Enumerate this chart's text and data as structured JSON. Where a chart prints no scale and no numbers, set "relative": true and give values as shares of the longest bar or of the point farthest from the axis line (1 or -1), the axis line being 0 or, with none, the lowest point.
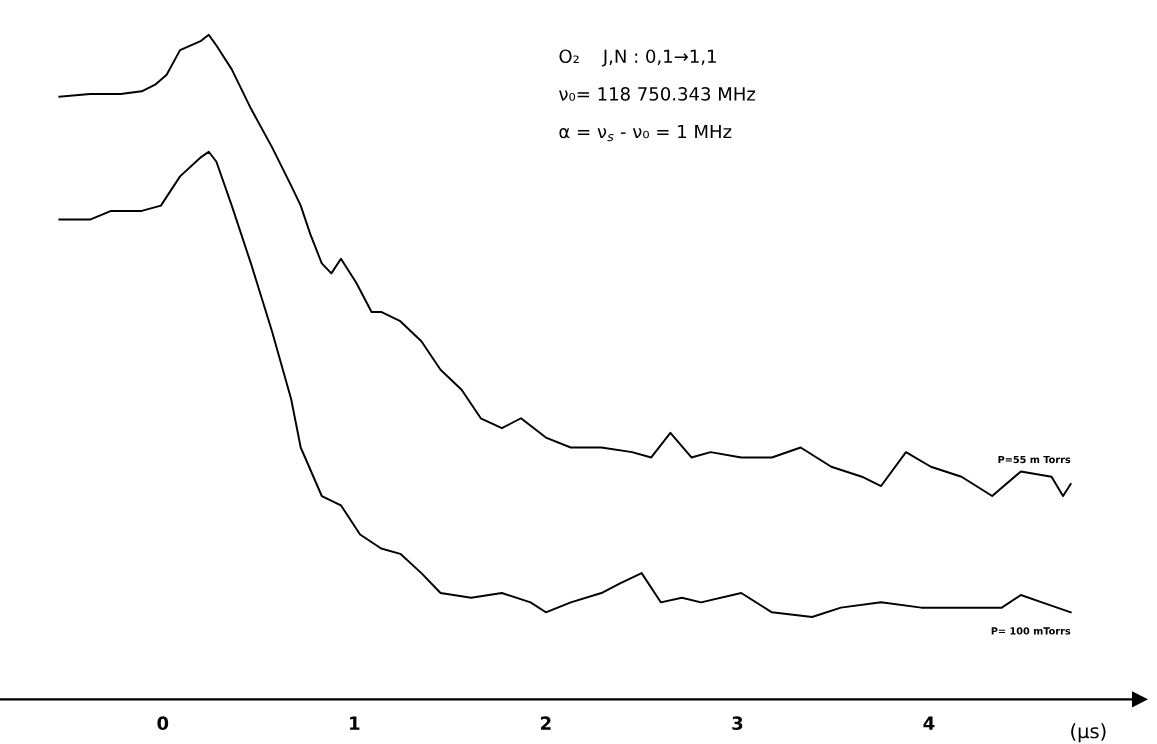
{
  "chart_data": {
    "type": "line",
    "relative": true,
    "xlabel": "(μs)",
    "xlim": [
      -0.85,
      5.1
    ],
    "xticks": [
      0,
      1,
      2,
      3,
      4
    ],
    "annotations": [
      "O₂    J,N : 0,1→1,1",
      "ν₀= 118 750.343 MHz",
      "α = ν$_{s}$ - ν₀ = 1 MHz"
    ],
    "series": [
      {
        "name": "P=55 m Torrs",
        "color": "#000000",
        "x": [
          -0.54,
          -0.38,
          -0.22,
          -0.11,
          -0.04,
          0.02,
          0.09,
          0.2,
          0.24,
          0.28,
          0.36,
          0.46,
          0.57,
          0.67,
          0.72,
          0.77,
          0.83,
          0.88,
          0.93,
          1.01,
          1.09,
          1.14,
          1.24,
          1.35,
          1.45,
          1.56,
          1.66,
          1.77,
          1.87,
          2.0,
          2.13,
          2.29,
          2.45,
          2.55,
          2.65,
          2.76,
          2.86,
          3.02,
          3.18,
          3.33,
          3.49,
          3.65,
          3.75,
          3.88,
          4.01,
          4.17,
          4.33,
          4.48,
          4.64,
          4.7,
          4.74
        ],
        "values": [
          0.907,
          0.911,
          0.911,
          0.915,
          0.925,
          0.94,
          0.977,
          0.991,
          1.0,
          0.984,
          0.948,
          0.889,
          0.831,
          0.773,
          0.743,
          0.7,
          0.656,
          0.641,
          0.663,
          0.627,
          0.583,
          0.583,
          0.569,
          0.539,
          0.496,
          0.466,
          0.423,
          0.408,
          0.423,
          0.394,
          0.379,
          0.379,
          0.372,
          0.364,
          0.401,
          0.364,
          0.372,
          0.364,
          0.364,
          0.379,
          0.35,
          0.335,
          0.321,
          0.372,
          0.35,
          0.335,
          0.306,
          0.343,
          0.335,
          0.306,
          0.324
        ]
      },
      {
        "name": "P= 100 mTorrs",
        "color": "#000000",
        "x": [
          -0.54,
          -0.38,
          -0.27,
          -0.11,
          -0.01,
          0.09,
          0.2,
          0.24,
          0.28,
          0.36,
          0.46,
          0.57,
          0.67,
          0.72,
          0.83,
          0.93,
          1.03,
          1.14,
          1.24,
          1.35,
          1.45,
          1.61,
          1.77,
          1.92,
          2.0,
          2.13,
          2.29,
          2.39,
          2.5,
          2.6,
          2.71,
          2.81,
          3.02,
          3.18,
          3.39,
          3.54,
          3.75,
          3.96,
          4.17,
          4.38,
          4.48,
          4.59,
          4.74
        ],
        "values": [
          0.722,
          0.722,
          0.735,
          0.735,
          0.743,
          0.787,
          0.816,
          0.824,
          0.809,
          0.743,
          0.656,
          0.554,
          0.452,
          0.379,
          0.306,
          0.292,
          0.248,
          0.227,
          0.219,
          0.19,
          0.16,
          0.153,
          0.16,
          0.146,
          0.131,
          0.146,
          0.16,
          0.175,
          0.19,
          0.146,
          0.153,
          0.146,
          0.16,
          0.131,
          0.124,
          0.138,
          0.146,
          0.138,
          0.138,
          0.138,
          0.157,
          0.146,
          0.131
        ]
      }
    ]
  }
}
